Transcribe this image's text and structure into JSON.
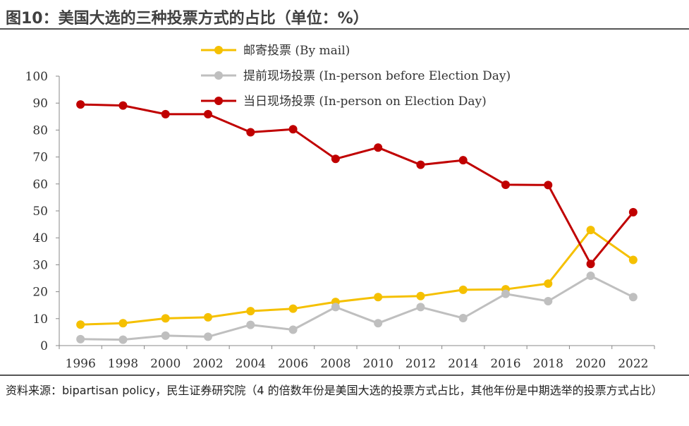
{
  "title": "图10：美国大选的三种投票方式的占比（单位：%）",
  "source": "资料来源：bipartisan policy，民生证券研究院（4 的倍数年份是美国大选的投票方式占比，其他年份是中期选举的投票方式占比）",
  "chart_data": {
    "type": "line",
    "categories": [
      "1996",
      "1998",
      "2000",
      "2002",
      "2004",
      "2006",
      "2008",
      "2010",
      "2012",
      "2014",
      "2016",
      "2018",
      "2020",
      "2022"
    ],
    "ylim": [
      0,
      100
    ],
    "yticks": [
      0,
      10,
      20,
      30,
      40,
      50,
      60,
      70,
      80,
      90,
      100
    ],
    "grid": false,
    "legend_position": "top",
    "series": [
      {
        "name": "邮寄投票 (By mail)",
        "color": "#F5C000",
        "values": [
          7.8,
          8.3,
          10.1,
          10.5,
          12.8,
          13.7,
          16.2,
          18.0,
          18.4,
          20.7,
          20.9,
          23.0,
          42.9,
          31.8
        ]
      },
      {
        "name": "提前现场投票 (In-person before Election Day)",
        "color": "#BFBFBF",
        "values": [
          2.4,
          2.2,
          3.7,
          3.3,
          7.7,
          5.9,
          14.3,
          8.3,
          14.3,
          10.2,
          19.2,
          16.5,
          25.9,
          18.0
        ]
      },
      {
        "name": "当日现场投票 (In-person on Election Day)",
        "color": "#C00000",
        "values": [
          89.5,
          89.1,
          85.9,
          85.9,
          79.2,
          80.3,
          69.3,
          73.5,
          67.1,
          68.8,
          59.7,
          59.6,
          30.3,
          49.5
        ]
      }
    ]
  }
}
